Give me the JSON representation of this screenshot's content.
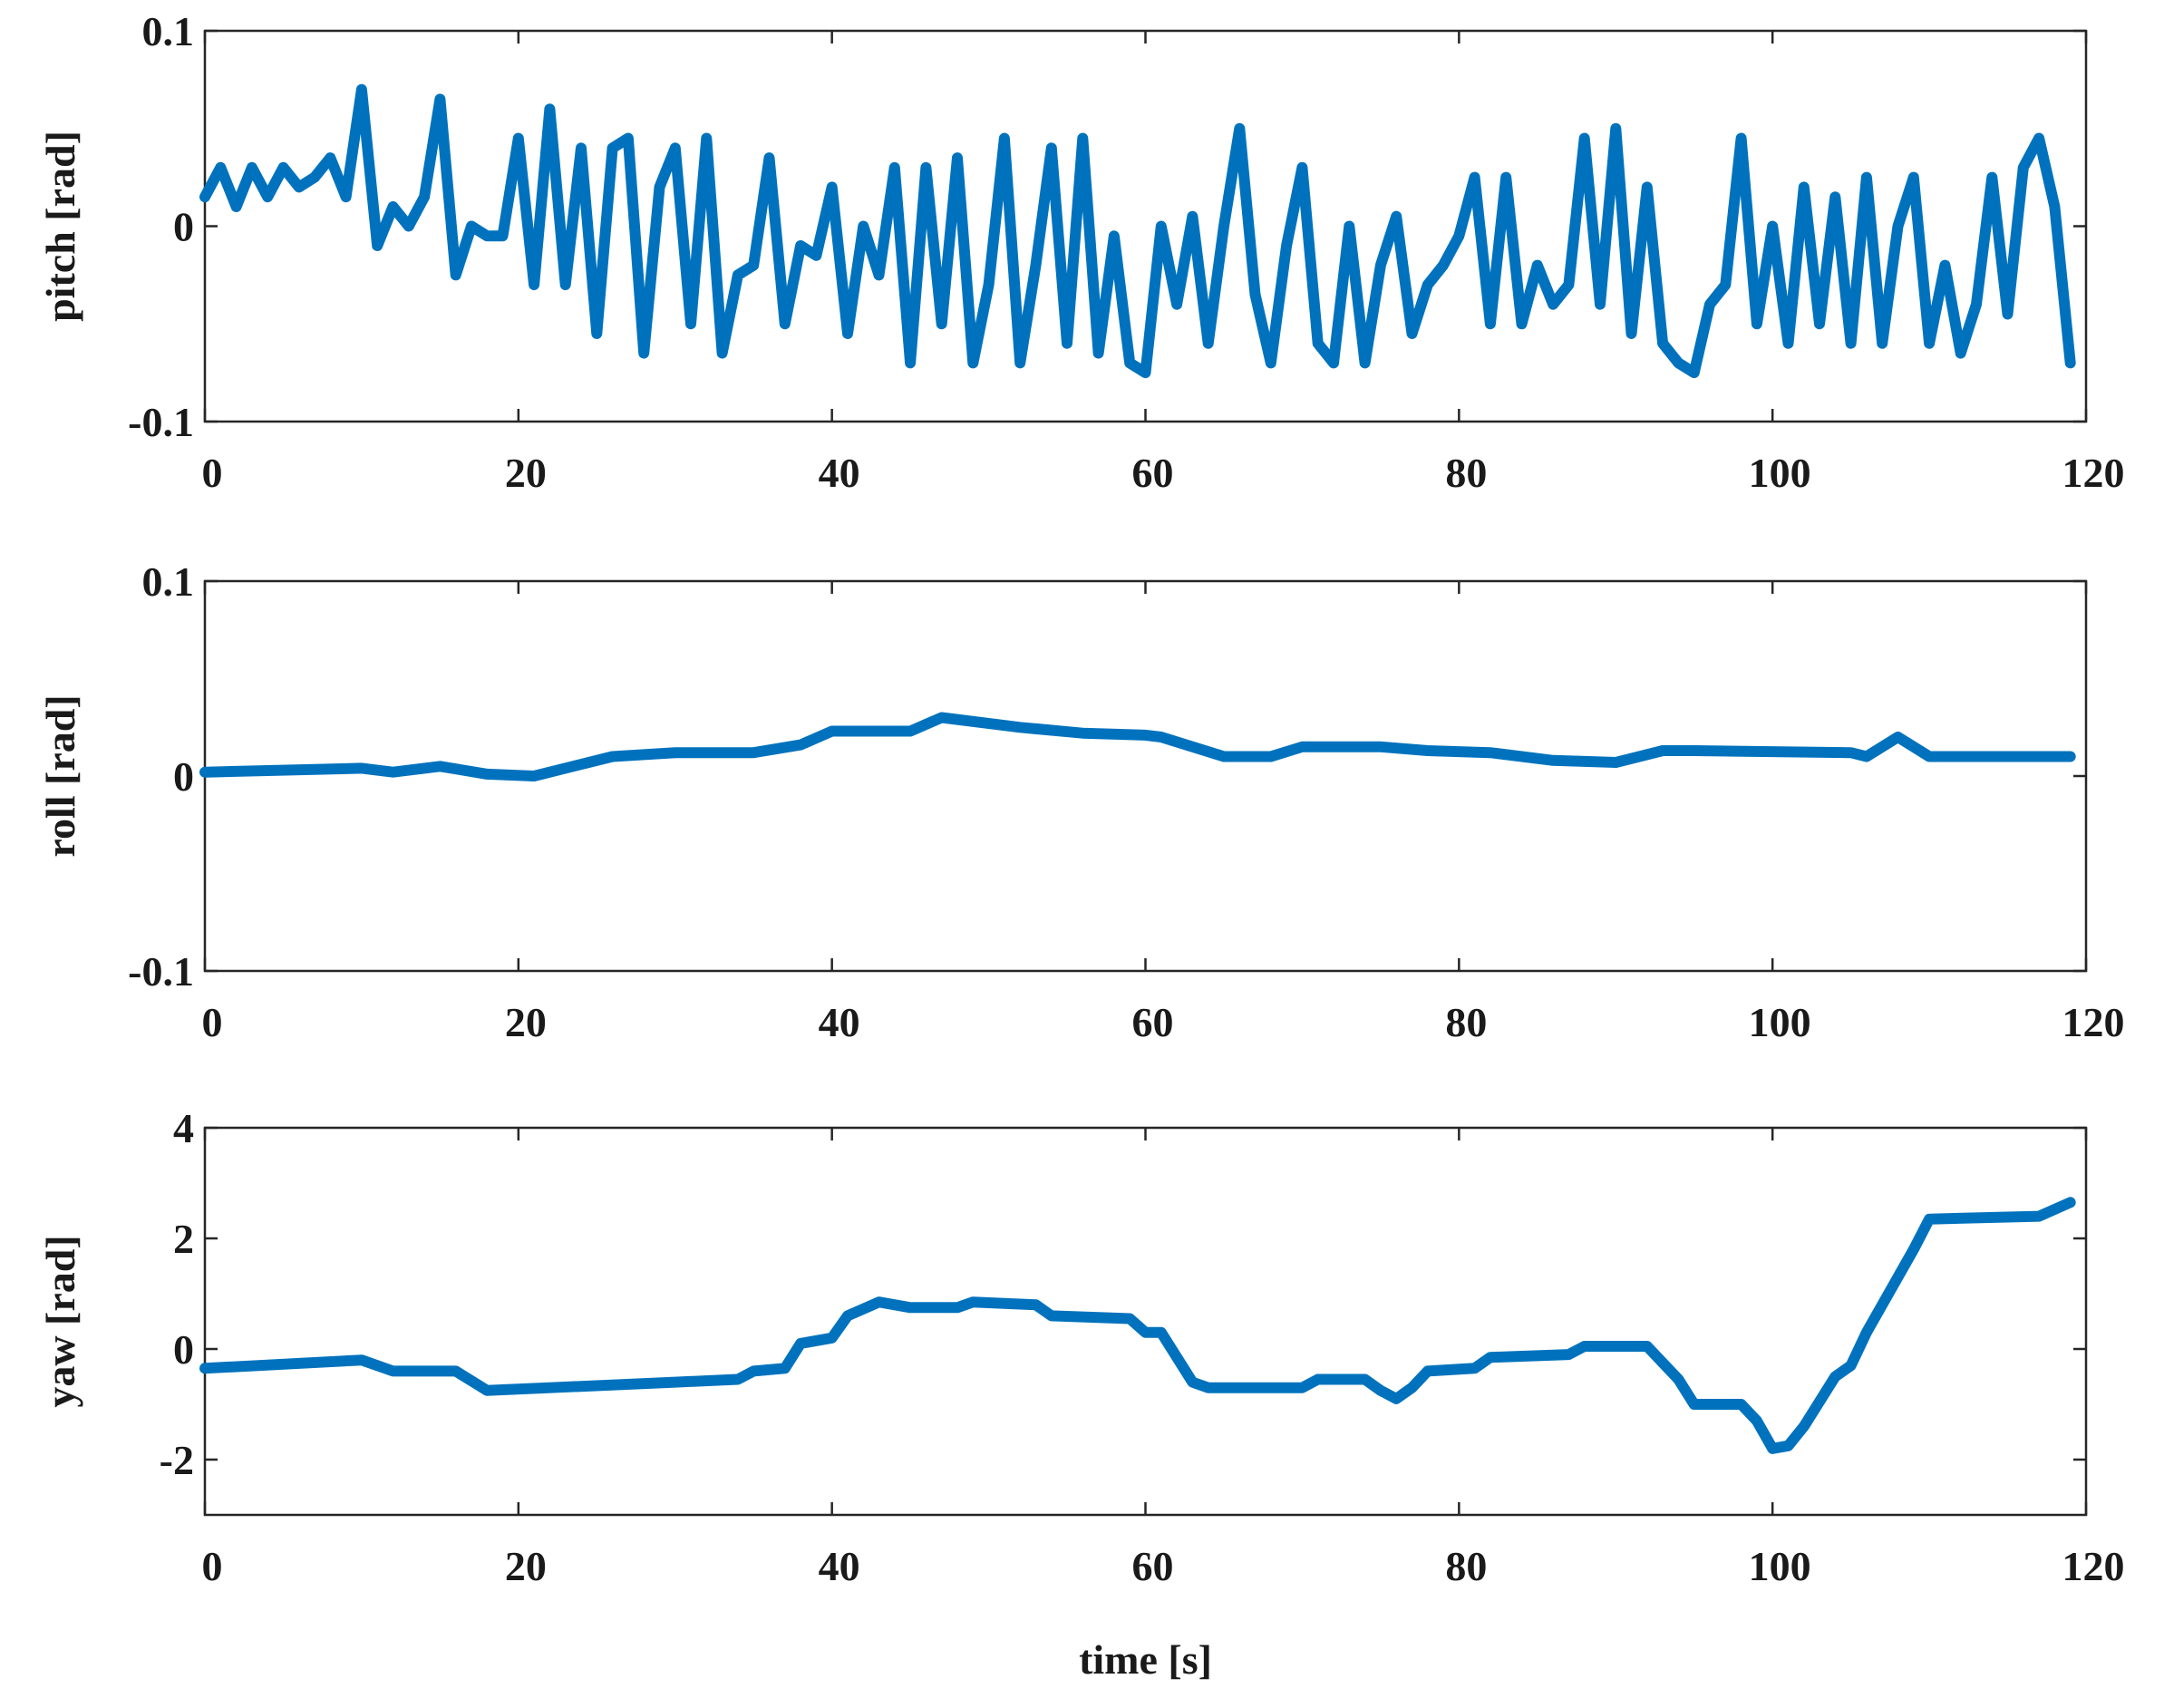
{
  "chart_data": [
    {
      "type": "line",
      "ylabel": "pitch [rad]",
      "color": "#0072bd",
      "xlim": [
        0,
        120
      ],
      "xticks": [
        0,
        20,
        40,
        60,
        80,
        100,
        120
      ],
      "ylim": [
        -0.1,
        0.1
      ],
      "yticks": [
        -0.1,
        0,
        0.1
      ],
      "x": [
        0,
        1,
        2,
        3,
        4,
        5,
        6,
        7,
        8,
        9,
        10,
        11,
        12,
        13,
        14,
        15,
        16,
        17,
        18,
        19,
        20,
        21,
        22,
        23,
        24,
        25,
        26,
        27,
        28,
        29,
        30,
        31,
        32,
        33,
        34,
        35,
        36,
        37,
        38,
        39,
        40,
        41,
        42,
        43,
        44,
        45,
        46,
        47,
        48,
        49,
        50,
        51,
        52,
        53,
        54,
        55,
        56,
        57,
        58,
        59,
        60,
        61,
        62,
        63,
        64,
        65,
        66,
        67,
        68,
        69,
        70,
        71,
        72,
        73,
        74,
        75,
        76,
        77,
        78,
        79,
        80,
        81,
        82,
        83,
        84,
        85,
        86,
        87,
        88,
        89,
        90,
        91,
        92,
        93,
        94,
        95,
        96,
        97,
        98,
        99,
        100,
        101,
        102,
        103,
        104,
        105,
        106,
        107,
        108,
        109,
        110,
        111,
        112,
        113,
        114,
        115,
        116,
        117,
        118,
        119
      ],
      "values": [
        0.015,
        0.03,
        0.01,
        0.03,
        0.015,
        0.03,
        0.02,
        0.025,
        0.035,
        0.015,
        0.07,
        -0.01,
        0.01,
        0.0,
        0.015,
        0.065,
        -0.025,
        0.0,
        -0.005,
        -0.005,
        0.045,
        -0.03,
        0.06,
        -0.03,
        0.04,
        -0.055,
        0.04,
        0.045,
        -0.065,
        0.02,
        0.04,
        -0.05,
        0.045,
        -0.065,
        -0.025,
        -0.02,
        0.035,
        -0.05,
        -0.01,
        -0.015,
        0.02,
        -0.055,
        0.0,
        -0.025,
        0.03,
        -0.07,
        0.03,
        -0.05,
        0.035,
        -0.07,
        -0.03,
        0.045,
        -0.07,
        -0.02,
        0.04,
        -0.06,
        0.045,
        -0.065,
        -0.005,
        -0.07,
        -0.075,
        0.0,
        -0.04,
        0.005,
        -0.06,
        0.0,
        0.05,
        -0.035,
        -0.07,
        -0.01,
        0.03,
        -0.06,
        -0.07,
        0.0,
        -0.07,
        -0.02,
        0.005,
        -0.055,
        -0.03,
        -0.02,
        -0.005,
        0.025,
        -0.05,
        0.025,
        -0.05,
        -0.02,
        -0.04,
        -0.03,
        0.045,
        -0.04,
        0.05,
        -0.055,
        0.02,
        -0.06,
        -0.07,
        -0.075,
        -0.04,
        -0.03,
        0.045,
        -0.05,
        0.0,
        -0.06,
        0.02,
        -0.05,
        0.015,
        -0.06,
        0.025,
        -0.06,
        0.0,
        0.025,
        -0.06,
        -0.02,
        -0.065,
        -0.04,
        0.025,
        -0.045,
        0.03,
        0.045,
        0.01,
        -0.07
      ]
    },
    {
      "type": "line",
      "ylabel": "roll [rad]",
      "color": "#0072bd",
      "xlim": [
        0,
        120
      ],
      "xticks": [
        0,
        20,
        40,
        60,
        80,
        100,
        120
      ],
      "ylim": [
        -0.1,
        0.1
      ],
      "yticks": [
        -0.1,
        0,
        0.1
      ],
      "x": [
        0,
        10,
        12,
        15,
        18,
        21,
        26,
        30,
        35,
        38,
        40,
        45,
        47,
        52,
        56,
        60,
        61,
        65,
        68,
        70,
        75,
        78,
        82,
        86,
        90,
        93,
        95,
        105,
        106,
        108,
        110,
        119
      ],
      "values": [
        0.002,
        0.004,
        0.002,
        0.005,
        0.001,
        0.0,
        0.01,
        0.012,
        0.012,
        0.016,
        0.023,
        0.023,
        0.03,
        0.025,
        0.022,
        0.021,
        0.02,
        0.01,
        0.01,
        0.015,
        0.015,
        0.013,
        0.012,
        0.008,
        0.007,
        0.013,
        0.013,
        0.012,
        0.01,
        0.02,
        0.01,
        0.01
      ]
    },
    {
      "type": "line",
      "ylabel": "yaw [rad]",
      "xlabel": "time [s]",
      "color": "#0072bd",
      "xlim": [
        0,
        120
      ],
      "xticks": [
        0,
        20,
        40,
        60,
        80,
        100,
        120
      ],
      "ylim": [
        -3,
        4
      ],
      "yticks": [
        -2,
        0,
        2,
        4
      ],
      "x": [
        0,
        10,
        12,
        16,
        18,
        30,
        34,
        35,
        37,
        38,
        40,
        41,
        43,
        45,
        48,
        49,
        53,
        54,
        59,
        60,
        61,
        63,
        64,
        70,
        71,
        74,
        75,
        76,
        77,
        78,
        81,
        82,
        87,
        88,
        92,
        94,
        95,
        98,
        99,
        100,
        101,
        102,
        104,
        105,
        106,
        108,
        109,
        110,
        117,
        119
      ],
      "values": [
        -0.35,
        -0.2,
        -0.4,
        -0.4,
        -0.75,
        -0.6,
        -0.55,
        -0.4,
        -0.35,
        0.1,
        0.2,
        0.6,
        0.85,
        0.75,
        0.75,
        0.85,
        0.8,
        0.6,
        0.55,
        0.3,
        0.3,
        -0.6,
        -0.7,
        -0.7,
        -0.55,
        -0.55,
        -0.75,
        -0.9,
        -0.7,
        -0.4,
        -0.35,
        -0.15,
        -0.1,
        0.05,
        0.05,
        -0.55,
        -1.0,
        -1.0,
        -1.3,
        -1.8,
        -1.75,
        -1.4,
        -0.5,
        -0.3,
        0.3,
        1.3,
        1.8,
        2.35,
        2.4,
        2.65
      ]
    }
  ]
}
